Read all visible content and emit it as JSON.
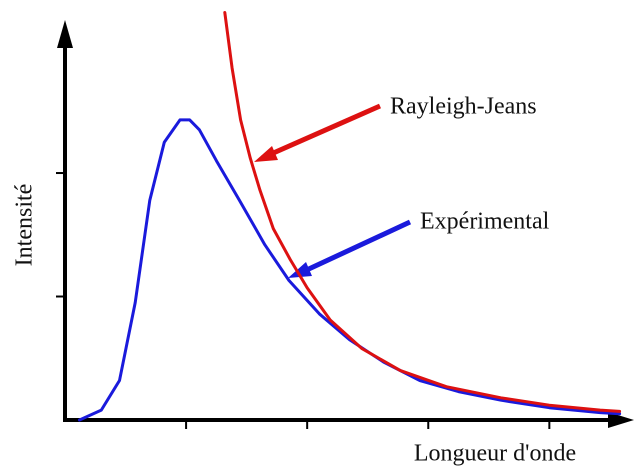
{
  "chart_data": {
    "type": "line",
    "xlabel": "Longueur d'onde",
    "ylabel": "Intensité",
    "xlim": [
      0,
      4.6
    ],
    "ylim": [
      0,
      3.3
    ],
    "xticks": [
      1,
      2,
      3,
      4
    ],
    "yticks": [
      1,
      2
    ],
    "series": [
      {
        "name": "Expérimental",
        "color": "#1a1adc",
        "x": [
          0.12,
          0.3,
          0.45,
          0.58,
          0.7,
          0.82,
          0.95,
          1.03,
          1.11,
          1.25,
          1.44,
          1.65,
          1.85,
          2.1,
          2.35,
          2.63,
          2.93,
          3.25,
          3.6,
          4.0,
          4.42,
          4.58
        ],
        "values": [
          0,
          0.08,
          0.32,
          0.95,
          1.78,
          2.25,
          2.43,
          2.43,
          2.35,
          2.1,
          1.78,
          1.42,
          1.13,
          0.86,
          0.65,
          0.47,
          0.32,
          0.23,
          0.16,
          0.1,
          0.06,
          0.05
        ]
      },
      {
        "name": "Rayleigh-Jeans",
        "color": "#dd1111",
        "x": [
          1.32,
          1.38,
          1.45,
          1.53,
          1.61,
          1.72,
          1.86,
          2.0,
          2.19,
          2.45,
          2.77,
          3.15,
          3.6,
          4.0,
          4.42,
          4.58
        ],
        "values": [
          3.3,
          2.85,
          2.43,
          2.12,
          1.86,
          1.55,
          1.3,
          1.07,
          0.81,
          0.58,
          0.4,
          0.27,
          0.18,
          0.12,
          0.08,
          0.07
        ]
      }
    ]
  }
}
